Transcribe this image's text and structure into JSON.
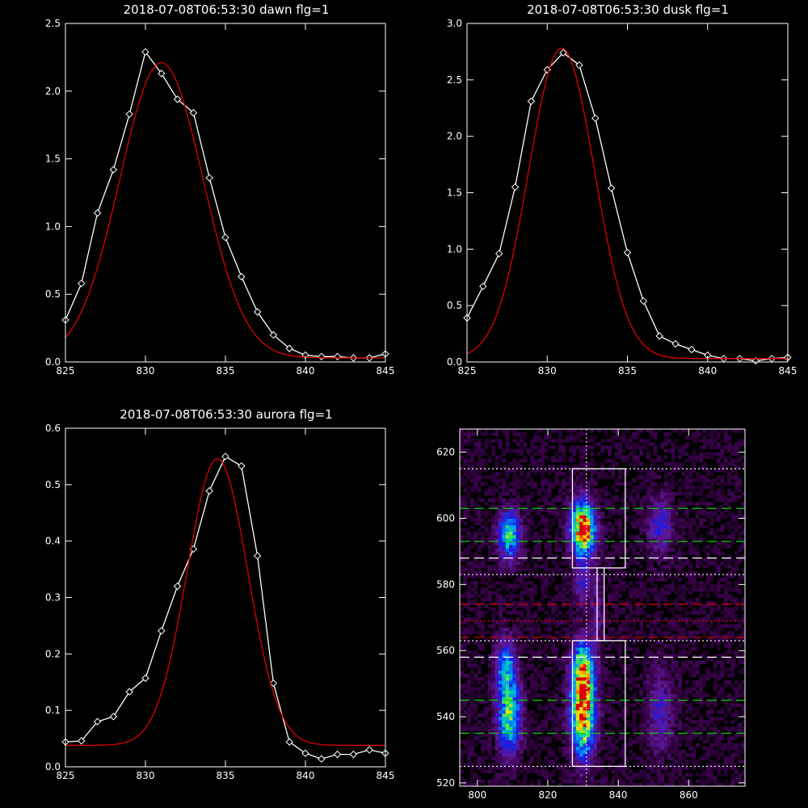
{
  "chart_data": [
    {
      "type": "line",
      "title": "2018-07-08T06:53:30 dawn flg=1",
      "xlim": [
        825,
        845
      ],
      "ylim": [
        0,
        2.5
      ],
      "xticks": [
        825,
        830,
        835,
        840,
        845
      ],
      "yticks": [
        0.0,
        0.5,
        1.0,
        1.5,
        2.0,
        2.5
      ],
      "ytick_format": 1,
      "series": [
        {
          "color": "#ffffff",
          "markers": true,
          "x": [
            825,
            826,
            827,
            828,
            829,
            830,
            831,
            832,
            833,
            834,
            835,
            836,
            837,
            838,
            839,
            840,
            841,
            842,
            843,
            844,
            845
          ],
          "y": [
            0.31,
            0.58,
            1.1,
            1.42,
            1.83,
            2.29,
            2.13,
            1.94,
            1.84,
            1.36,
            0.92,
            0.63,
            0.37,
            0.2,
            0.1,
            0.05,
            0.04,
            0.04,
            0.03,
            0.03,
            0.06
          ]
        },
        {
          "color": "#e00000",
          "markers": false,
          "gauss": {
            "amp": 2.18,
            "center": 831.0,
            "sigma": 2.6,
            "base": 0.03
          }
        }
      ]
    },
    {
      "type": "line",
      "title": "2018-07-08T06:53:30 dusk flg=1",
      "xlim": [
        825,
        845
      ],
      "ylim": [
        0,
        3.0
      ],
      "xticks": [
        825,
        830,
        835,
        840,
        845
      ],
      "yticks": [
        0.0,
        0.5,
        1.0,
        1.5,
        2.0,
        2.5,
        3.0
      ],
      "ytick_format": 1,
      "series": [
        {
          "color": "#ffffff",
          "markers": true,
          "x": [
            825,
            826,
            827,
            828,
            829,
            830,
            831,
            832,
            833,
            834,
            835,
            836,
            837,
            838,
            839,
            840,
            841,
            842,
            843,
            844,
            845
          ],
          "y": [
            0.39,
            0.67,
            0.96,
            1.55,
            2.31,
            2.59,
            2.74,
            2.63,
            2.16,
            1.54,
            0.97,
            0.54,
            0.23,
            0.16,
            0.11,
            0.06,
            0.03,
            0.03,
            0.01,
            0.03,
            0.04
          ]
        },
        {
          "color": "#e00000",
          "markers": false,
          "gauss": {
            "amp": 2.75,
            "center": 830.9,
            "sigma": 2.05,
            "base": 0.03
          }
        }
      ]
    },
    {
      "type": "line",
      "title": "2018-07-08T06:53:30 aurora flg=1",
      "xlim": [
        825,
        845
      ],
      "ylim": [
        0,
        0.6
      ],
      "xticks": [
        825,
        830,
        835,
        840,
        845
      ],
      "yticks": [
        0.0,
        0.1,
        0.2,
        0.3,
        0.4,
        0.5,
        0.6
      ],
      "ytick_format": 1,
      "series": [
        {
          "color": "#ffffff",
          "markers": true,
          "x": [
            825,
            826,
            827,
            828,
            829,
            830,
            831,
            832,
            833,
            834,
            835,
            836,
            837,
            838,
            839,
            840,
            841,
            842,
            843,
            844,
            845
          ],
          "y": [
            0.044,
            0.046,
            0.08,
            0.089,
            0.133,
            0.157,
            0.241,
            0.32,
            0.386,
            0.489,
            0.55,
            0.533,
            0.374,
            0.148,
            0.044,
            0.024,
            0.014,
            0.022,
            0.022,
            0.03,
            0.024
          ]
        },
        {
          "color": "#e00000",
          "markers": false,
          "gauss": {
            "amp": 0.508,
            "center": 834.5,
            "sigma": 1.9,
            "base": 0.038
          }
        }
      ]
    },
    {
      "type": "heatmap",
      "xlim": [
        795,
        876
      ],
      "ylim": [
        519,
        627
      ],
      "xticks": [
        800,
        820,
        840,
        860
      ],
      "yticks": [
        520,
        540,
        560,
        580,
        600,
        620
      ],
      "blobs": [
        {
          "x": 830,
          "y": 597,
          "sx": 2.3,
          "sy": 5.5,
          "amp": 1.0
        },
        {
          "x": 830,
          "y": 542,
          "sx": 2.3,
          "sy": 9,
          "amp": 0.95
        },
        {
          "x": 830,
          "y": 555,
          "sx": 2.0,
          "sy": 6,
          "amp": 0.5
        },
        {
          "x": 830,
          "y": 580,
          "sx": 1.8,
          "sy": 4,
          "amp": 0.22
        },
        {
          "x": 834,
          "y": 571,
          "sx": 1.2,
          "sy": 8,
          "amp": 0.15
        },
        {
          "x": 809,
          "y": 595,
          "sx": 2.2,
          "sy": 5,
          "amp": 0.55
        },
        {
          "x": 809,
          "y": 541,
          "sx": 2.2,
          "sy": 8,
          "amp": 0.62
        },
        {
          "x": 808,
          "y": 556,
          "sx": 2.0,
          "sy": 6,
          "amp": 0.35
        },
        {
          "x": 852,
          "y": 598,
          "sx": 2.5,
          "sy": 6,
          "amp": 0.25
        },
        {
          "x": 852,
          "y": 542,
          "sx": 2.5,
          "sy": 9,
          "amp": 0.22
        }
      ],
      "vline": {
        "x": 831,
        "color": "#ffffff",
        "style": "dotted"
      },
      "hlines": [
        {
          "y": 615,
          "color": "#ffffff",
          "style": "dotted"
        },
        {
          "y": 603,
          "color": "#00d000",
          "style": "dashed"
        },
        {
          "y": 593,
          "color": "#00d000",
          "style": "dashed"
        },
        {
          "y": 588,
          "color": "#ffffff",
          "style": "dashed"
        },
        {
          "y": 583,
          "color": "#ffffff",
          "style": "dotted"
        },
        {
          "y": 574,
          "color": "#e00000",
          "style": "dashed"
        },
        {
          "y": 569,
          "color": "#e00000",
          "style": "dotted"
        },
        {
          "y": 564,
          "color": "#e00000",
          "style": "dashed"
        },
        {
          "y": 563,
          "color": "#ffffff",
          "style": "dotted"
        },
        {
          "y": 558,
          "color": "#ffffff",
          "style": "dashed"
        },
        {
          "y": 545,
          "color": "#00d000",
          "style": "dashed"
        },
        {
          "y": 535,
          "color": "#00d000",
          "style": "dashed"
        },
        {
          "y": 525,
          "color": "#ffffff",
          "style": "dotted"
        }
      ],
      "boxes": [
        {
          "x0": 827,
          "x1": 842,
          "y0": 585,
          "y1": 615
        },
        {
          "x0": 827,
          "x1": 842,
          "y0": 525,
          "y1": 563
        },
        {
          "x0": 834,
          "x1": 836,
          "y0": 563,
          "y1": 585
        }
      ]
    }
  ]
}
